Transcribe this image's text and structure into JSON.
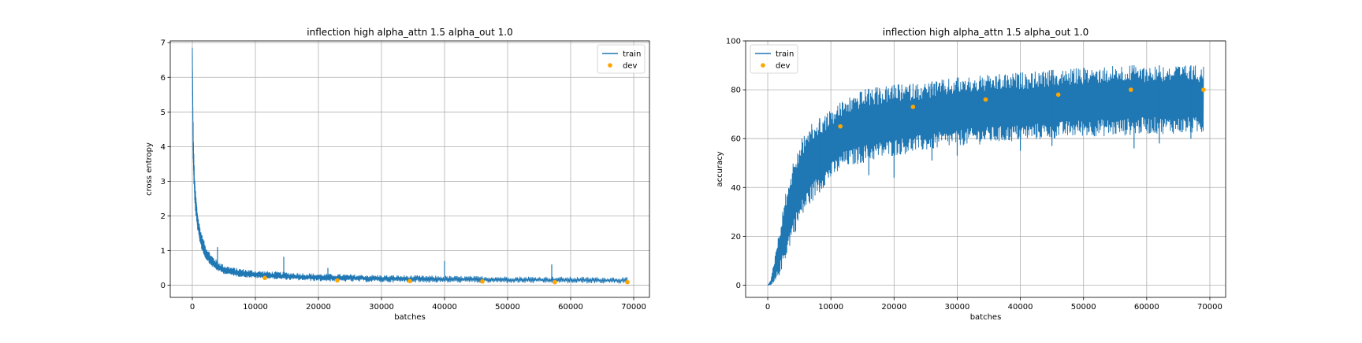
{
  "colors": {
    "train": "#1f77b4",
    "dev": "#ffa500",
    "grid": "#b0b0b0",
    "axis": "#000000"
  },
  "chart_data": [
    {
      "type": "line",
      "title": "inflection high alpha_attn 1.5 alpha_out 1.0",
      "xlabel": "batches",
      "ylabel": "cross entropy",
      "xlim": [
        -3500,
        72500
      ],
      "ylim": [
        -0.35,
        7.05
      ],
      "xticks": [
        0,
        10000,
        20000,
        30000,
        40000,
        50000,
        60000,
        70000
      ],
      "yticks": [
        0,
        1,
        2,
        3,
        4,
        5,
        6,
        7
      ],
      "grid": true,
      "legend": {
        "placement": "upper-right",
        "entries": [
          "train",
          "dev"
        ]
      },
      "series": [
        {
          "name": "train",
          "kind": "line",
          "x": [
            0,
            100,
            200,
            400,
            700,
            1000,
            1500,
            2000,
            3000,
            4000,
            5000,
            7000,
            10000,
            15000,
            20000,
            30000,
            40000,
            50000,
            60000,
            69000
          ],
          "y": [
            6.7,
            4.5,
            3.5,
            2.6,
            2.0,
            1.6,
            1.2,
            0.95,
            0.68,
            0.52,
            0.43,
            0.35,
            0.3,
            0.25,
            0.22,
            0.19,
            0.17,
            0.16,
            0.15,
            0.14
          ],
          "noise_upper": [
            0.2,
            0.6,
            0.5,
            0.4,
            0.35,
            0.3,
            0.28,
            0.25,
            0.2,
            0.18,
            0.15,
            0.14,
            0.12,
            0.12,
            0.11,
            0.1,
            0.1,
            0.09,
            0.09,
            0.09
          ],
          "noise_lower": [
            0.1,
            0.5,
            0.4,
            0.3,
            0.25,
            0.2,
            0.18,
            0.15,
            0.12,
            0.1,
            0.09,
            0.09,
            0.09,
            0.09,
            0.1,
            0.1,
            0.09,
            0.09,
            0.09,
            0.09
          ],
          "spikes": [
            [
              4000,
              1.1
            ],
            [
              14500,
              0.82
            ],
            [
              21500,
              0.5
            ],
            [
              40000,
              0.7
            ],
            [
              57000,
              0.6
            ]
          ]
        },
        {
          "name": "dev",
          "kind": "scatter",
          "x": [
            11500,
            23000,
            34500,
            46000,
            57500,
            69000
          ],
          "y": [
            0.21,
            0.14,
            0.12,
            0.11,
            0.09,
            0.09
          ]
        }
      ]
    },
    {
      "type": "line",
      "title": "inflection high alpha_attn 1.5 alpha_out 1.0",
      "xlabel": "batches",
      "ylabel": "accuracy",
      "xlim": [
        -3500,
        72500
      ],
      "ylim": [
        -5,
        100
      ],
      "xticks": [
        0,
        10000,
        20000,
        30000,
        40000,
        50000,
        60000,
        70000
      ],
      "yticks": [
        0,
        20,
        40,
        60,
        80,
        100
      ],
      "grid": true,
      "legend": {
        "placement": "upper-left",
        "entries": [
          "train",
          "dev"
        ]
      },
      "series": [
        {
          "name": "train",
          "kind": "line",
          "x": [
            0,
            500,
            1000,
            1500,
            2000,
            3000,
            4000,
            5000,
            6000,
            8000,
            10000,
            12000,
            15000,
            20000,
            25000,
            30000,
            35000,
            40000,
            45000,
            50000,
            55000,
            60000,
            65000,
            69000
          ],
          "upper": [
            0,
            2,
            10,
            18,
            25,
            40,
            50,
            58,
            64,
            68,
            72,
            76,
            80,
            82,
            83,
            85,
            86,
            87,
            88,
            89,
            90,
            90,
            90,
            90
          ],
          "lower": [
            0,
            0,
            0,
            2,
            5,
            12,
            20,
            25,
            30,
            38,
            43,
            48,
            50,
            53,
            55,
            57,
            58,
            59,
            60,
            61,
            61,
            62,
            62,
            62
          ],
          "spikes": [
            [
              8200,
              38
            ],
            [
              16000,
              45
            ],
            [
              20000,
              44
            ],
            [
              26000,
              51
            ],
            [
              30000,
              53
            ],
            [
              40000,
              55
            ],
            [
              45000,
              57
            ],
            [
              58000,
              56
            ],
            [
              62000,
              58
            ],
            [
              67000,
              60
            ]
          ]
        },
        {
          "name": "dev",
          "kind": "scatter",
          "x": [
            11500,
            23000,
            34500,
            46000,
            57500,
            69000
          ],
          "y": [
            65,
            73,
            76,
            78,
            80,
            80
          ]
        }
      ]
    }
  ]
}
